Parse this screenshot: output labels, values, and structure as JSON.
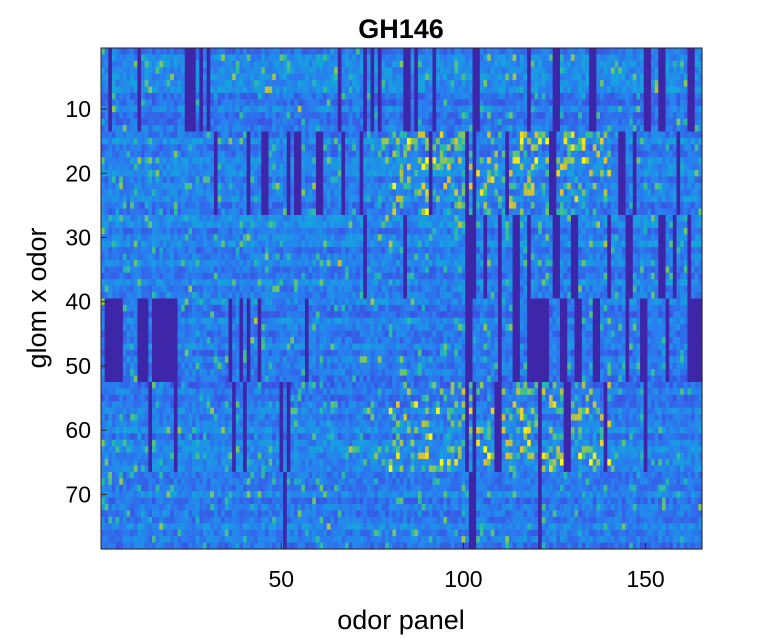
{
  "chart_data": {
    "type": "heatmap",
    "title": "GH146",
    "xlabel": "odor panel",
    "ylabel": "glom x odor",
    "xlim": [
      0.5,
      165.5
    ],
    "ylim": [
      0.5,
      78.5
    ],
    "x_ticks": [
      50,
      100,
      150
    ],
    "y_ticks": [
      10,
      20,
      30,
      40,
      50,
      60,
      70
    ],
    "colormap": "parula",
    "grid": false,
    "n_cols": 165,
    "n_rows": 78,
    "row_groups": [
      {
        "rows": [
          1,
          13
        ],
        "silent_cols": [
          [
            3,
            3
          ],
          [
            11,
            11
          ],
          [
            24,
            24
          ],
          [
            25,
            25
          ],
          [
            26,
            26
          ],
          [
            28,
            28
          ],
          [
            30,
            30
          ],
          [
            66,
            66
          ],
          [
            73,
            73
          ],
          [
            75,
            75
          ],
          [
            77,
            77
          ],
          [
            84,
            84
          ],
          [
            85,
            85
          ],
          [
            87,
            87
          ],
          [
            92,
            92
          ],
          [
            103,
            103
          ],
          [
            104,
            104
          ],
          [
            118,
            118
          ],
          [
            125,
            125
          ],
          [
            126,
            126
          ],
          [
            135,
            135
          ],
          [
            136,
            136
          ],
          [
            150,
            150
          ],
          [
            151,
            151
          ],
          [
            154,
            154
          ],
          [
            155,
            155
          ],
          [
            162,
            162
          ],
          [
            163,
            163
          ]
        ]
      },
      {
        "rows": [
          14,
          26
        ],
        "silent_cols": [
          [
            32,
            32
          ],
          [
            41,
            41
          ],
          [
            45,
            45
          ],
          [
            46,
            46
          ],
          [
            52,
            52
          ],
          [
            54,
            54
          ],
          [
            55,
            55
          ],
          [
            60,
            60
          ],
          [
            61,
            61
          ],
          [
            67,
            67
          ],
          [
            72,
            72
          ],
          [
            91,
            91
          ],
          [
            101,
            101
          ],
          [
            103,
            103
          ],
          [
            112,
            112
          ],
          [
            124,
            124
          ],
          [
            125,
            125
          ],
          [
            143,
            143
          ],
          [
            144,
            144
          ],
          [
            147,
            147
          ],
          [
            159,
            159
          ]
        ]
      },
      {
        "rows": [
          27,
          39
        ],
        "silent_cols": [
          [
            73,
            73
          ],
          [
            84,
            84
          ],
          [
            101,
            101
          ],
          [
            102,
            102
          ],
          [
            103,
            103
          ],
          [
            106,
            106
          ],
          [
            110,
            110
          ],
          [
            114,
            114
          ],
          [
            115,
            115
          ],
          [
            118,
            118
          ],
          [
            125,
            125
          ],
          [
            126,
            126
          ],
          [
            130,
            130
          ],
          [
            131,
            131
          ],
          [
            140,
            140
          ],
          [
            145,
            145
          ],
          [
            146,
            146
          ],
          [
            154,
            154
          ],
          [
            155,
            155
          ],
          [
            158,
            158
          ],
          [
            162,
            162
          ]
        ]
      },
      {
        "rows": [
          40,
          52
        ],
        "silent_cols": [
          [
            2,
            2
          ],
          [
            3,
            3
          ],
          [
            4,
            4
          ],
          [
            5,
            5
          ],
          [
            6,
            6
          ],
          [
            11,
            11
          ],
          [
            12,
            12
          ],
          [
            13,
            13
          ],
          [
            15,
            15
          ],
          [
            16,
            16
          ],
          [
            17,
            17
          ],
          [
            18,
            18
          ],
          [
            19,
            19
          ],
          [
            20,
            20
          ],
          [
            21,
            21
          ],
          [
            36,
            36
          ],
          [
            39,
            39
          ],
          [
            41,
            41
          ],
          [
            44,
            44
          ],
          [
            57,
            57
          ],
          [
            101,
            101
          ],
          [
            102,
            102
          ],
          [
            110,
            110
          ],
          [
            114,
            114
          ],
          [
            115,
            115
          ],
          [
            118,
            118
          ],
          [
            119,
            119
          ],
          [
            120,
            120
          ],
          [
            121,
            121
          ],
          [
            122,
            122
          ],
          [
            123,
            123
          ],
          [
            127,
            127
          ],
          [
            128,
            128
          ],
          [
            131,
            131
          ],
          [
            132,
            132
          ],
          [
            136,
            136
          ],
          [
            137,
            137
          ],
          [
            145,
            145
          ],
          [
            149,
            149
          ],
          [
            150,
            150
          ],
          [
            156,
            156
          ],
          [
            162,
            162
          ],
          [
            163,
            163
          ],
          [
            164,
            164
          ],
          [
            165,
            165
          ]
        ]
      },
      {
        "rows": [
          53,
          66
        ],
        "silent_cols": [
          [
            14,
            14
          ],
          [
            21,
            21
          ],
          [
            37,
            37
          ],
          [
            40,
            40
          ],
          [
            50,
            50
          ],
          [
            52,
            52
          ],
          [
            101,
            101
          ],
          [
            103,
            103
          ],
          [
            109,
            109
          ],
          [
            110,
            110
          ],
          [
            121,
            121
          ],
          [
            128,
            128
          ],
          [
            129,
            129
          ],
          [
            139,
            139
          ],
          [
            150,
            150
          ]
        ]
      },
      {
        "rows": [
          67,
          78
        ],
        "silent_cols": [
          [
            51,
            51
          ],
          [
            102,
            102
          ],
          [
            103,
            103
          ],
          [
            121,
            121
          ]
        ]
      }
    ],
    "value_range": [
      0,
      1
    ],
    "notes_visible": "bright yellow cells appear mostly in rows 14-26 and 53-66 near columns 80-140"
  }
}
